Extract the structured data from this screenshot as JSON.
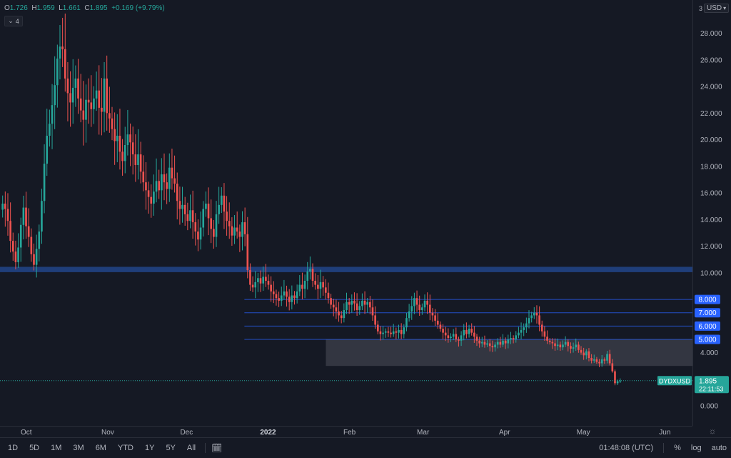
{
  "header": {
    "open_label": "O",
    "open": "1.726",
    "high_label": "H",
    "high": "1.959",
    "low_label": "L",
    "low": "1.661",
    "close_label": "C",
    "close": "1.895",
    "change": "+0.169 (+9.79%)",
    "collapse_count": "4"
  },
  "price_axis": {
    "currency": "USD",
    "auto_scale_marker": "3"
  },
  "chart_data": {
    "type": "candlestick",
    "symbol": "DYDXUSD",
    "y_ticks": [
      0,
      2,
      4,
      6,
      8,
      10,
      12,
      14,
      16,
      18,
      20,
      22,
      24,
      26,
      28
    ],
    "y_tick_labels": [
      "0.000",
      "",
      "4.000",
      "",
      "",
      "10.000",
      "12.000",
      "14.000",
      "16.000",
      "18.000",
      "20.000",
      "22.000",
      "24.000",
      "26.000",
      "28.000"
    ],
    "ylim": [
      -1.5,
      30.5
    ],
    "x_ticks": [
      {
        "label": "Oct",
        "day": 0
      },
      {
        "label": "Nov",
        "day": 31
      },
      {
        "label": "Dec",
        "day": 61
      },
      {
        "label": "2022",
        "day": 92
      },
      {
        "label": "Feb",
        "day": 123
      },
      {
        "label": "Mar",
        "day": 151
      },
      {
        "label": "Apr",
        "day": 182
      },
      {
        "label": "May",
        "day": 212
      },
      {
        "label": "Jun",
        "day": 243
      }
    ],
    "x_range_days": [
      -10,
      253.5
    ],
    "horizontal_levels": [
      {
        "value": 8.0,
        "label": "8.000"
      },
      {
        "value": 7.0,
        "label": "7.000"
      },
      {
        "value": 6.0,
        "label": "6.000"
      },
      {
        "value": 5.0,
        "label": "5.000"
      }
    ],
    "resistance_band": {
      "from": 10.05,
      "to": 10.45
    },
    "support_zone": {
      "from": 3.0,
      "to": 5.0,
      "start_day": 114
    },
    "last_price": {
      "value": 1.895,
      "symbol_label": "DYDXUSD",
      "price_label": "1.895",
      "countdown": "22:11:53"
    },
    "up_color": "#26a69a",
    "down_color": "#ef5350",
    "closes": [
      15.2,
      14.8,
      13.9,
      12.4,
      11.6,
      10.8,
      11.9,
      13.6,
      14.9,
      13.5,
      12.7,
      11.4,
      10.6,
      11.8,
      13.1,
      15.4,
      18.2,
      20.3,
      21.2,
      22.6,
      24.1,
      26.1,
      27.0,
      26.8,
      24.6,
      23.5,
      22.8,
      23.9,
      24.6,
      23.1,
      22.2,
      21.5,
      23.0,
      22.8,
      22.3,
      23.1,
      23.7,
      22.4,
      22.1,
      24.6,
      22.0,
      21.6,
      20.8,
      19.9,
      20.3,
      19.1,
      18.4,
      19.6,
      20.4,
      19.8,
      18.9,
      18.1,
      18.9,
      17.6,
      16.8,
      16.2,
      15.7,
      15.2,
      16.1,
      16.9,
      16.2,
      17.4,
      16.8,
      16.3,
      17.9,
      17.1,
      16.7,
      15.4,
      14.8,
      15.1,
      14.4,
      13.9,
      14.7,
      13.8,
      13.1,
      12.5,
      13.4,
      14.8,
      15.2,
      14.1,
      13.3,
      12.7,
      14.4,
      15.1,
      15.8,
      14.6,
      13.9,
      13.5,
      12.8,
      13.4,
      13.1,
      12.7,
      13.8,
      12.9,
      10.2,
      9.1,
      8.9,
      9.3,
      9.6,
      9.2,
      9.7,
      9.4,
      9.1,
      8.6,
      8.4,
      8.1,
      7.9,
      8.3,
      8.6,
      8.2,
      7.8,
      8.3,
      8.1,
      8.6,
      9.1,
      8.8,
      9.4,
      10.1,
      10.3,
      9.4,
      9.1,
      8.8,
      9.3,
      8.9,
      8.5,
      8.1,
      7.6,
      7.4,
      7.1,
      6.8,
      6.6,
      7.2,
      7.8,
      7.6,
      7.9,
      7.7,
      7.2,
      7.5,
      7.9,
      7.6,
      7.8,
      7.4,
      6.8,
      6.1,
      5.6,
      5.4,
      5.5,
      5.6,
      5.5,
      5.4,
      5.6,
      5.5,
      5.7,
      5.4,
      5.9,
      6.6,
      7.1,
      7.5,
      8.1,
      7.6,
      7.2,
      7.4,
      7.9,
      7.6,
      7.0,
      6.8,
      6.4,
      6.1,
      5.8,
      5.5,
      5.3,
      5.1,
      5.2,
      5.4,
      5.0,
      4.9,
      5.3,
      5.7,
      5.4,
      5.8,
      5.5,
      5.2,
      4.9,
      4.7,
      4.8,
      4.6,
      4.7,
      4.5,
      4.4,
      4.6,
      4.8,
      4.6,
      4.9,
      4.7,
      5.0,
      5.1,
      5.0,
      5.3,
      5.5,
      5.7,
      5.9,
      6.2,
      6.6,
      6.8,
      7.0,
      6.8,
      6.1,
      5.6,
      5.2,
      4.9,
      4.8,
      4.7,
      4.5,
      4.6,
      4.4,
      4.6,
      4.8,
      4.5,
      4.3,
      4.4,
      4.6,
      4.2,
      4.0,
      3.8,
      4.1,
      3.6,
      3.4,
      3.5,
      3.3,
      3.2,
      3.5,
      3.4,
      3.9,
      3.2,
      2.6,
      1.7,
      1.85,
      1.895
    ]
  },
  "toolbar": {
    "timeframes": [
      "1D",
      "5D",
      "1M",
      "3M",
      "6M",
      "YTD",
      "1Y",
      "5Y",
      "All"
    ],
    "time": "01:48:08 (UTC)",
    "percent": "%",
    "log": "log",
    "auto": "auto"
  }
}
